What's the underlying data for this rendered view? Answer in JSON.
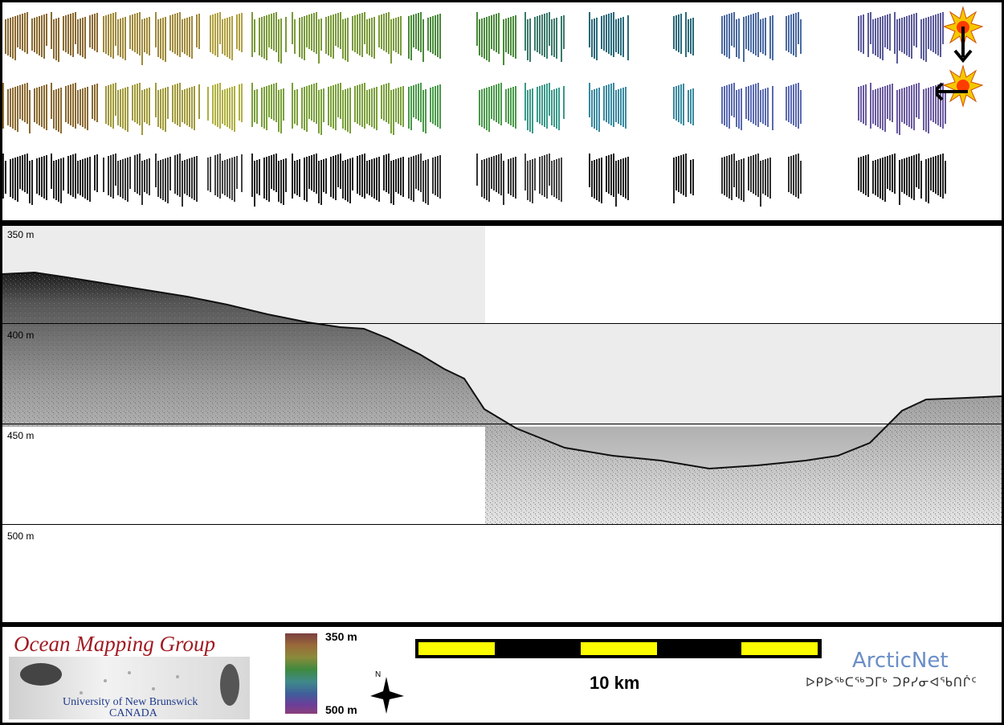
{
  "depth_labels": [
    "350 m",
    "400 m",
    "450 m",
    "500 m"
  ],
  "colorbar": {
    "top_label": "350 m",
    "bottom_label": "500 m"
  },
  "scale_bar": {
    "label": "10 km",
    "colors": [
      "#fcfc00",
      "#000000"
    ]
  },
  "logos": {
    "omg_title": "Ocean Mapping Group",
    "omg_university": "University of New Brunswick",
    "omg_country": "CANADA",
    "arcticnet": "ArcticNet",
    "arcticnet_syllabics": "ᐅᑭᐅᖅᑕᖅᑐᒥᒃ ᑐᑭᓯᓂᐊᖃᑎᒌᑦ"
  },
  "icons": [
    "sun-icon",
    "arrow-down-icon",
    "arrow-left-icon",
    "north-arrow-icon"
  ],
  "colors": {
    "frame": "#000000",
    "omg_red": "#a01a22",
    "arcticnet_blue": "#6a8ec6",
    "scale_yellow": "#fcfc00"
  }
}
